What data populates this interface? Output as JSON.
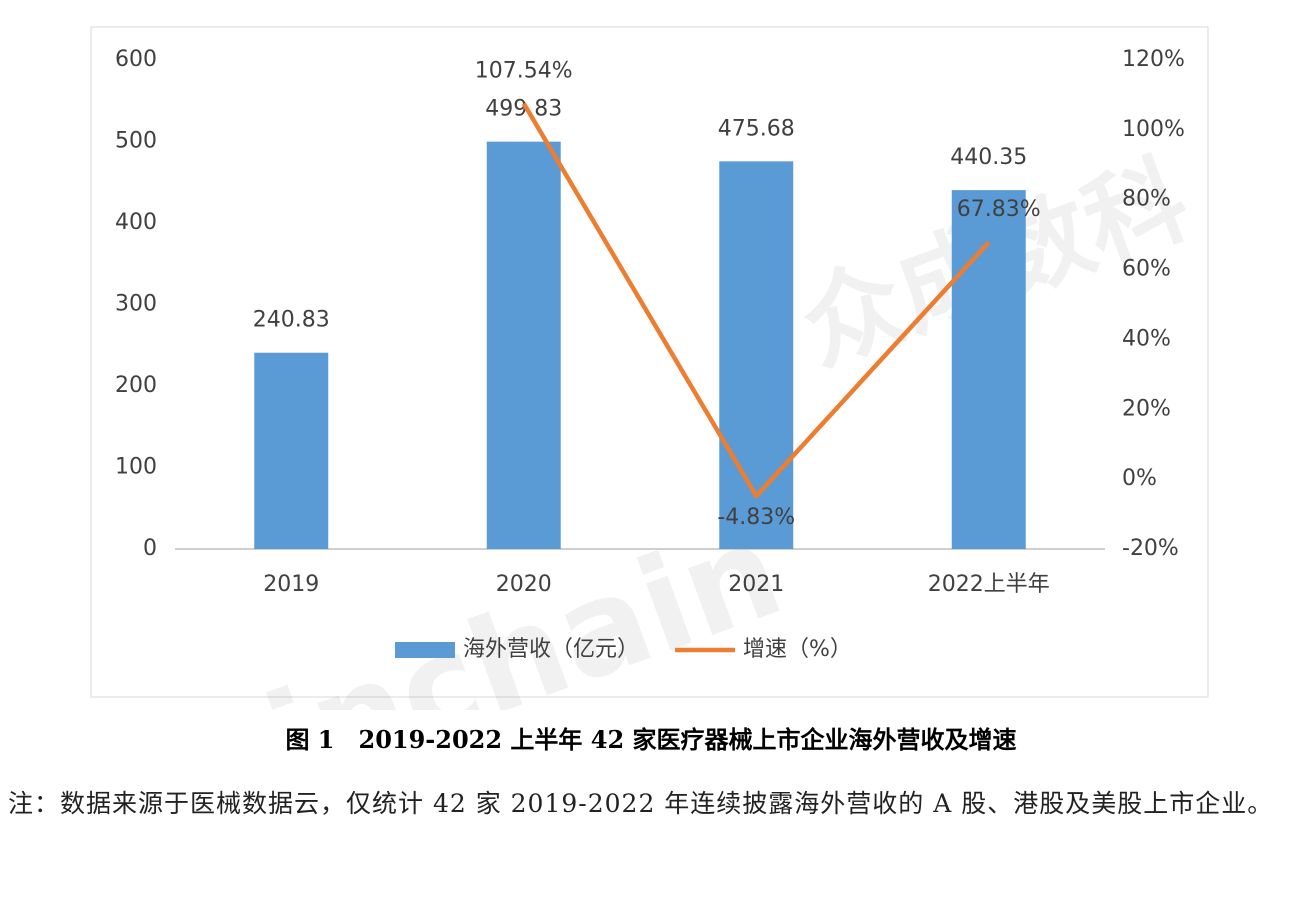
{
  "chart_data": {
    "type": "bar-line",
    "categories": [
      "2019",
      "2020",
      "2021",
      "2022上半年"
    ],
    "series": [
      {
        "name": "海外营收（亿元）",
        "type": "bar",
        "color": "#5b9bd5",
        "values": [
          240.83,
          499.83,
          475.68,
          440.35
        ]
      },
      {
        "name": "增速（%）",
        "type": "line",
        "axis": "y2",
        "color": "#ed7d31",
        "values": [
          null,
          107.54,
          -4.83,
          67.83
        ],
        "value_labels": [
          null,
          "107.54%",
          "-4.83%",
          "67.83%"
        ]
      }
    ],
    "ylim": [
      0,
      600
    ],
    "yticks": [
      0,
      100,
      200,
      300,
      400,
      500,
      600
    ],
    "y2lim": [
      -20,
      120
    ],
    "y2ticks": [
      {
        "value": -20,
        "label": "-20%"
      },
      {
        "value": 0,
        "label": "0%"
      },
      {
        "value": 20,
        "label": "20%"
      },
      {
        "value": 40,
        "label": "40%"
      },
      {
        "value": 60,
        "label": "60%"
      },
      {
        "value": 80,
        "label": "80%"
      },
      {
        "value": 100,
        "label": "100%"
      },
      {
        "value": 120,
        "label": "120%"
      }
    ],
    "legend": "bottom"
  },
  "watermark": [
    "Joinchain",
    "众成数科"
  ],
  "caption": "图 1　2019-2022 上半年 42 家医疗器械上市企业海外营收及增速",
  "note": "注：数据来源于医械数据云，仅统计 42 家 2019-2022 年连续披露海外营收的 A 股、港股及美股上市企业。"
}
